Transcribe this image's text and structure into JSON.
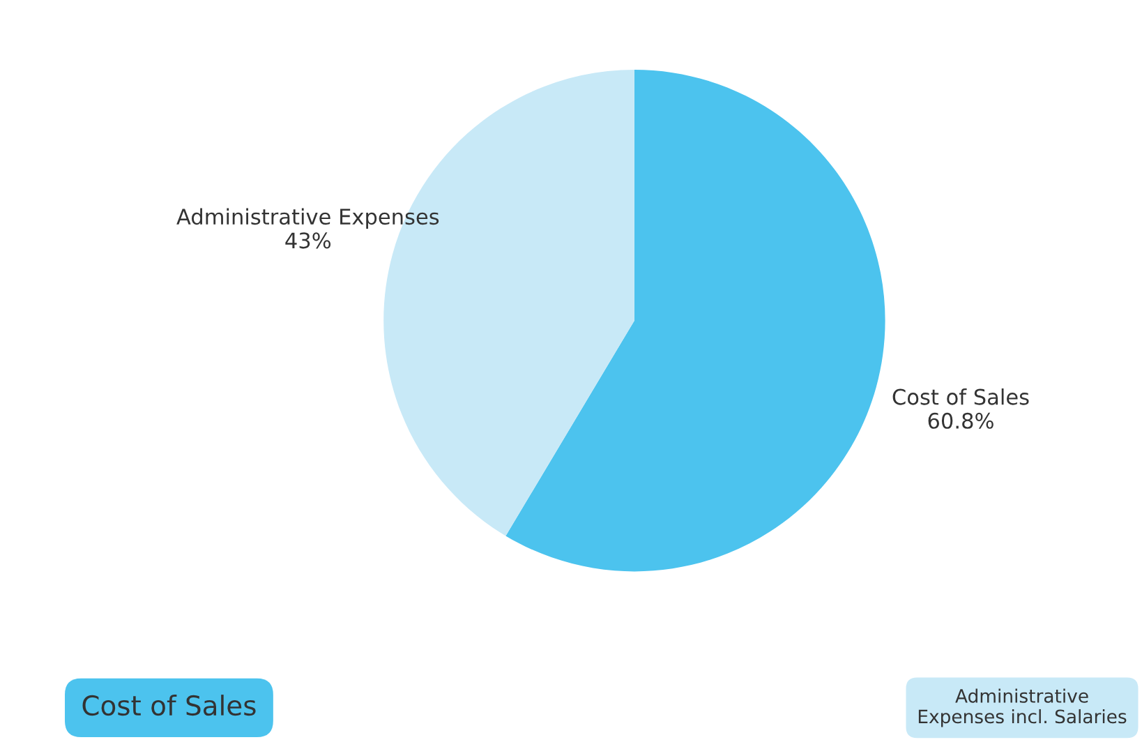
{
  "chart_data": {
    "type": "pie",
    "categories": [
      "Cost of Sales",
      "Administrative Expenses"
    ],
    "values": [
      60.8,
      43
    ],
    "colors": [
      "#4cc3ee",
      "#c8e9f7"
    ],
    "value_labels": [
      "60.8%",
      "43%"
    ],
    "annotations": [
      "Cost of Sales",
      "Administrative\nExpenses incl. Salaries"
    ]
  }
}
